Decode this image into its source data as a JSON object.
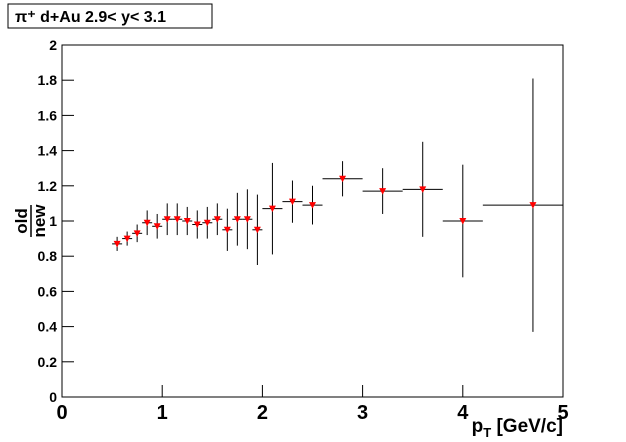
{
  "chart_data": {
    "type": "scatter",
    "title": "π⁺  d+Au 2.9< y< 3.1",
    "y_label": {
      "numerator": "old",
      "denominator": "new"
    },
    "x_label": {
      "main": "p",
      "sub": "T",
      "rest": " [GeV/c]"
    },
    "xlim": [
      0,
      5
    ],
    "xticks": [
      0,
      1,
      2,
      3,
      4,
      5
    ],
    "ylim": [
      0,
      2
    ],
    "yticks": [
      0,
      0.2,
      0.4,
      0.6,
      0.8,
      1,
      1.2,
      1.4,
      1.6,
      1.8,
      2
    ],
    "series": [
      {
        "color": "#ff0000",
        "x": [
          0.55,
          0.65,
          0.75,
          0.85,
          0.95,
          1.05,
          1.15,
          1.25,
          1.35,
          1.45,
          1.55,
          1.65,
          1.75,
          1.85,
          1.95,
          2.1,
          2.3,
          2.5,
          2.8,
          3.2,
          3.6,
          4.0,
          4.7
        ],
        "xerr": [
          0.05,
          0.05,
          0.05,
          0.05,
          0.05,
          0.05,
          0.05,
          0.05,
          0.05,
          0.05,
          0.05,
          0.05,
          0.05,
          0.05,
          0.05,
          0.1,
          0.1,
          0.1,
          0.2,
          0.2,
          0.2,
          0.2,
          0.5
        ],
        "values": [
          0.87,
          0.9,
          0.93,
          0.99,
          0.97,
          1.01,
          1.01,
          1.0,
          0.98,
          0.99,
          1.01,
          0.95,
          1.01,
          1.01,
          0.95,
          1.07,
          1.11,
          1.09,
          1.24,
          1.17,
          1.18,
          1.0,
          1.09
        ],
        "yerr": [
          0.04,
          0.04,
          0.05,
          0.07,
          0.07,
          0.09,
          0.09,
          0.08,
          0.08,
          0.09,
          0.09,
          0.12,
          0.15,
          0.17,
          0.2,
          0.26,
          0.12,
          0.11,
          0.1,
          0.13,
          0.27,
          0.32,
          0.72
        ]
      }
    ]
  }
}
